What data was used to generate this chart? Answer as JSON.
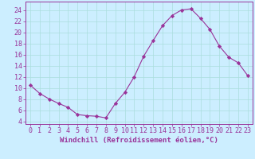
{
  "x": [
    0,
    1,
    2,
    3,
    4,
    5,
    6,
    7,
    8,
    9,
    10,
    11,
    12,
    13,
    14,
    15,
    16,
    17,
    18,
    19,
    20,
    21,
    22,
    23
  ],
  "y": [
    10.5,
    9.0,
    8.0,
    7.2,
    6.5,
    5.2,
    5.0,
    4.9,
    4.6,
    7.2,
    9.2,
    12.0,
    15.7,
    18.5,
    21.2,
    23.0,
    24.0,
    24.2,
    22.5,
    20.5,
    17.5,
    15.5,
    14.5,
    12.2
  ],
  "line_color": "#993399",
  "marker": "D",
  "marker_size": 2.2,
  "background_color": "#cceeff",
  "grid_color": "#aadddd",
  "xlabel": "Windchill (Refroidissement éolien,°C)",
  "xlim": [
    -0.5,
    23.5
  ],
  "ylim": [
    3.5,
    25.5
  ],
  "yticks": [
    4,
    6,
    8,
    10,
    12,
    14,
    16,
    18,
    20,
    22,
    24
  ],
  "xticks": [
    0,
    1,
    2,
    3,
    4,
    5,
    6,
    7,
    8,
    9,
    10,
    11,
    12,
    13,
    14,
    15,
    16,
    17,
    18,
    19,
    20,
    21,
    22,
    23
  ],
  "tick_color": "#993399",
  "label_color": "#993399",
  "spine_color": "#993399",
  "fontsize_xlabel": 6.5,
  "fontsize_ticks": 6.0
}
